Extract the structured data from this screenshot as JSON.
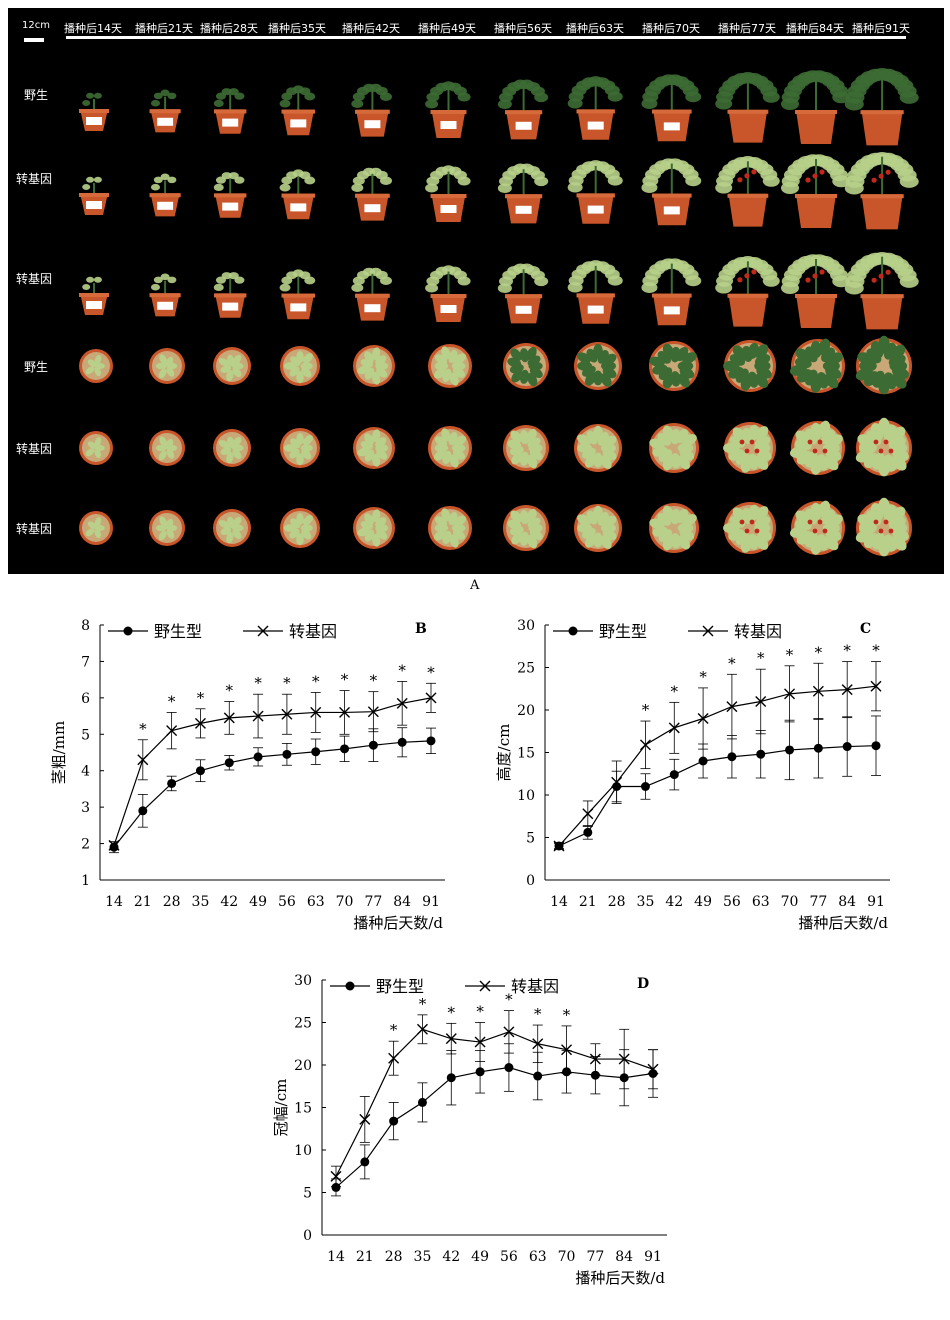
{
  "figure": {
    "panel_a": {
      "scale_label": "12cm",
      "day_labels": [
        "播种后14天",
        "播种后21天",
        "播种后28天",
        "播种后35天",
        "播种后42天",
        "播种后49天",
        "播种后56天",
        "播种后63天",
        "播种后70天",
        "播种后77天",
        "播种后84天",
        "播种后91天"
      ],
      "row_labels": [
        "野生",
        "转基因",
        "转基因",
        "野生",
        "转基因",
        "转基因"
      ],
      "caption": "A"
    }
  },
  "colors": {
    "pot": "#c8562a",
    "foliage_light": "#b8d08a",
    "foliage_dark": "#3d6b34",
    "fruit": "#c0281c",
    "soil": "#c9a878"
  },
  "chart_data": [
    {
      "type": "line",
      "panel_letter": "B",
      "ylabel": "茎粗/mm",
      "xlabel": "播种后天数/d",
      "categories": [
        "14",
        "21",
        "28",
        "35",
        "42",
        "49",
        "56",
        "63",
        "70",
        "77",
        "84",
        "91"
      ],
      "ylim": [
        1,
        8
      ],
      "yticks": [
        "1",
        "2",
        "3",
        "4",
        "5",
        "6",
        "7",
        "8"
      ],
      "series": [
        {
          "name": "野生型",
          "marker": "dot",
          "values": [
            1.9,
            2.9,
            3.65,
            4.0,
            4.22,
            4.38,
            4.45,
            4.52,
            4.6,
            4.7,
            4.78,
            4.82
          ],
          "errors": [
            0.15,
            0.45,
            0.2,
            0.3,
            0.2,
            0.25,
            0.3,
            0.35,
            0.35,
            0.45,
            0.4,
            0.35
          ]
        },
        {
          "name": "转基因",
          "marker": "x",
          "values": [
            1.95,
            4.3,
            5.1,
            5.3,
            5.45,
            5.5,
            5.55,
            5.6,
            5.6,
            5.62,
            5.85,
            6.0
          ],
          "errors": [
            0.1,
            0.55,
            0.5,
            0.4,
            0.45,
            0.6,
            0.55,
            0.55,
            0.6,
            0.55,
            0.6,
            0.4
          ]
        }
      ],
      "significance": [
        "",
        "*",
        "*",
        "*",
        "*",
        "*",
        "*",
        "*",
        "*",
        "*",
        "*",
        "*"
      ]
    },
    {
      "type": "line",
      "panel_letter": "C",
      "ylabel": "高度/cm",
      "xlabel": "播种后天数/d",
      "categories": [
        "14",
        "21",
        "28",
        "35",
        "42",
        "49",
        "56",
        "63",
        "70",
        "77",
        "84",
        "91"
      ],
      "ylim": [
        0,
        30
      ],
      "yticks": [
        "0",
        "5",
        "10",
        "15",
        "20",
        "25",
        "30"
      ],
      "series": [
        {
          "name": "野生型",
          "marker": "dot",
          "values": [
            4.0,
            5.6,
            11.0,
            11.0,
            12.4,
            14.0,
            14.5,
            14.8,
            15.3,
            15.5,
            15.7,
            15.8
          ],
          "errors": [
            0.4,
            0.8,
            1.8,
            1.5,
            1.8,
            2.0,
            2.5,
            2.8,
            3.5,
            3.5,
            3.5,
            3.5
          ]
        },
        {
          "name": "转基因",
          "marker": "x",
          "values": [
            4.0,
            7.8,
            11.5,
            15.9,
            17.9,
            19.0,
            20.4,
            21.0,
            21.9,
            22.2,
            22.4,
            22.8
          ],
          "errors": [
            0.3,
            1.5,
            2.5,
            2.8,
            3.0,
            3.6,
            3.8,
            3.8,
            3.3,
            3.3,
            3.3,
            2.9
          ]
        }
      ],
      "significance": [
        "",
        "",
        "",
        "*",
        "*",
        "*",
        "*",
        "*",
        "*",
        "*",
        "*",
        "*"
      ]
    },
    {
      "type": "line",
      "panel_letter": "D",
      "ylabel": "冠幅/cm",
      "xlabel": "播种后天数/d",
      "categories": [
        "14",
        "21",
        "28",
        "35",
        "42",
        "49",
        "56",
        "63",
        "70",
        "77",
        "84",
        "91"
      ],
      "ylim": [
        0,
        30
      ],
      "yticks": [
        "0",
        "5",
        "10",
        "15",
        "20",
        "25",
        "30"
      ],
      "series": [
        {
          "name": "野生型",
          "marker": "dot",
          "values": [
            5.6,
            8.6,
            13.4,
            15.6,
            18.5,
            19.2,
            19.7,
            18.7,
            19.2,
            18.8,
            18.5,
            19.0
          ],
          "errors": [
            1.0,
            2.0,
            2.2,
            2.3,
            3.2,
            2.5,
            2.8,
            2.8,
            2.5,
            2.2,
            3.3,
            2.8
          ]
        },
        {
          "name": "转基因",
          "marker": "x",
          "values": [
            6.9,
            13.6,
            20.8,
            24.2,
            23.1,
            22.7,
            23.9,
            22.5,
            21.8,
            20.7,
            20.7,
            19.5
          ],
          "errors": [
            1.2,
            2.7,
            2.0,
            1.7,
            1.8,
            2.3,
            2.5,
            2.2,
            2.8,
            1.8,
            3.5,
            2.3
          ]
        }
      ],
      "significance": [
        "",
        "",
        "*",
        "*",
        "*",
        "*",
        "*",
        "*",
        "*",
        "",
        "",
        ""
      ]
    }
  ]
}
